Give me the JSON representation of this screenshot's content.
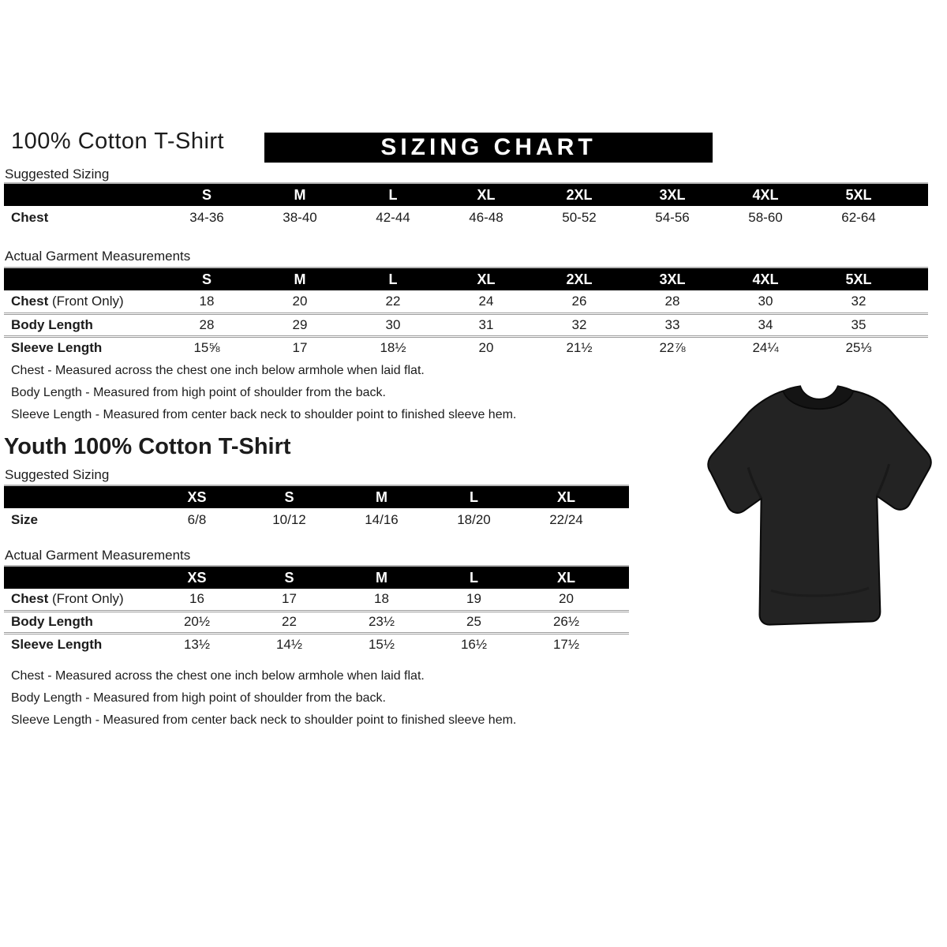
{
  "adult": {
    "title": "100% Cotton T-Shirt",
    "banner": "SIZING CHART",
    "suggested": {
      "label": "Suggested Sizing",
      "columns": [
        "S",
        "M",
        "L",
        "XL",
        "2XL",
        "3XL",
        "4XL",
        "5XL"
      ],
      "rows": [
        {
          "label": "Chest",
          "suffix": "",
          "values": [
            "34-36",
            "38-40",
            "42-44",
            "46-48",
            "50-52",
            "54-56",
            "58-60",
            "62-64"
          ]
        }
      ]
    },
    "actual": {
      "label": "Actual Garment Measurements",
      "columns": [
        "S",
        "M",
        "L",
        "XL",
        "2XL",
        "3XL",
        "4XL",
        "5XL"
      ],
      "rows": [
        {
          "label": "Chest",
          "suffix": " (Front Only)",
          "values": [
            "18",
            "20",
            "22",
            "24",
            "26",
            "28",
            "30",
            "32"
          ]
        },
        {
          "label": "Body Length",
          "suffix": "",
          "values": [
            "28",
            "29",
            "30",
            "31",
            "32",
            "33",
            "34",
            "35"
          ]
        },
        {
          "label": "Sleeve Length",
          "suffix": "",
          "values": [
            "15⅝",
            "17",
            "18½",
            "20",
            "21½",
            "22⅞",
            "24¼",
            "25⅓"
          ]
        }
      ]
    },
    "notes": [
      "Chest - Measured across the chest one inch below armhole when laid flat.",
      "Body Length - Measured from high point of shoulder from the back.",
      "Sleeve Length - Measured from center back neck to shoulder point to finished sleeve hem."
    ]
  },
  "youth": {
    "title": "Youth 100% Cotton T-Shirt",
    "suggested": {
      "label": "Suggested Sizing",
      "columns": [
        "XS",
        "S",
        "M",
        "L",
        "XL"
      ],
      "rows": [
        {
          "label": "Size",
          "suffix": "",
          "values": [
            "6/8",
            "10/12",
            "14/16",
            "18/20",
            "22/24"
          ]
        }
      ]
    },
    "actual": {
      "label": "Actual Garment Measurements",
      "columns": [
        "XS",
        "S",
        "M",
        "L",
        "XL"
      ],
      "rows": [
        {
          "label": "Chest",
          "suffix": " (Front Only)",
          "values": [
            "16",
            "17",
            "18",
            "19",
            "20"
          ]
        },
        {
          "label": "Body Length",
          "suffix": "",
          "values": [
            "20½",
            "22",
            "23½",
            "25",
            "26½"
          ]
        },
        {
          "label": "Sleeve Length",
          "suffix": "",
          "values": [
            "13½",
            "14½",
            "15½",
            "16½",
            "17½"
          ]
        }
      ]
    },
    "notes": [
      "Chest - Measured across the chest one inch below armhole when laid flat.",
      "Body Length - Measured from high point of shoulder from the back.",
      "Sleeve Length - Measured from center back neck to shoulder point to finished sleeve hem."
    ]
  },
  "tshirt_image": {
    "alt": "Black 100% cotton crew-neck t-shirt laid flat"
  },
  "colors": {
    "header_bar": "#000000",
    "header_text": "#ffffff",
    "body_text": "#1c1c1c",
    "divider": "#9c9c9c",
    "shirt_body": "#232323",
    "shirt_outline": "#0a0a0a"
  }
}
